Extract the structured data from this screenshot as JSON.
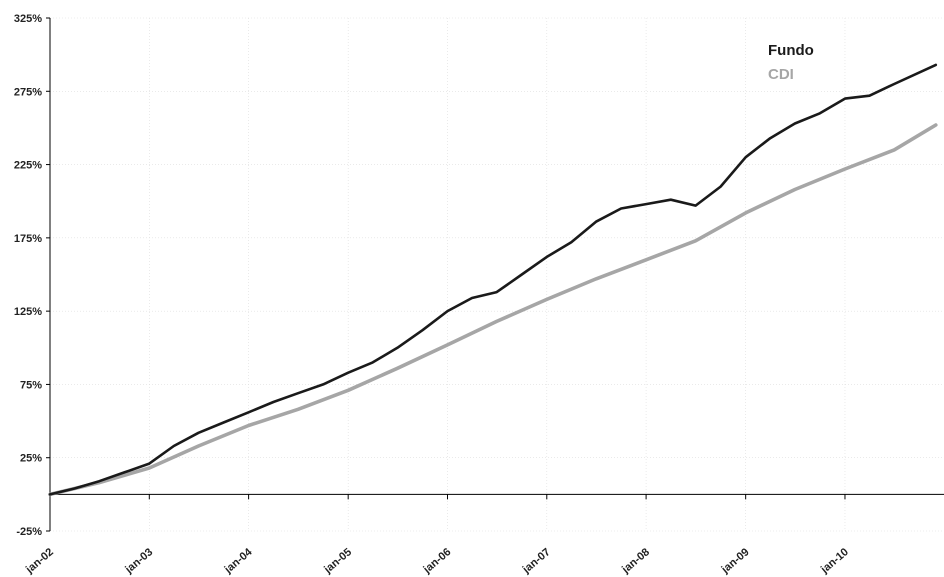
{
  "chart_data": {
    "type": "line",
    "x": [
      "jan-02",
      "jan-03",
      "jan-04",
      "jan-05",
      "jan-06",
      "jan-07",
      "jan-08",
      "jan-09",
      "jan-10",
      "dec-10"
    ],
    "x_tick_labels": [
      "jan-02",
      "jan-03",
      "jan-04",
      "jan-05",
      "jan-06",
      "jan-07",
      "jan-08",
      "jan-09",
      "jan-10"
    ],
    "ylim": [
      -25,
      325
    ],
    "y_tick_labels": [
      "325%",
      "275%",
      "225%",
      "175%",
      "125%",
      "75%",
      "25%",
      "-25%"
    ],
    "y_ticks": [
      325,
      275,
      225,
      175,
      125,
      75,
      25,
      -25
    ],
    "grid": true,
    "legend_position": "top-right",
    "series": [
      {
        "name": "Fundo",
        "color": "#1a1a1a",
        "points": [
          [
            "jan-02",
            0
          ],
          [
            "apr-02",
            4
          ],
          [
            "jul-02",
            9
          ],
          [
            "oct-02",
            15
          ],
          [
            "jan-03",
            21
          ],
          [
            "apr-03",
            33
          ],
          [
            "jul-03",
            42
          ],
          [
            "oct-03",
            49
          ],
          [
            "jan-04",
            56
          ],
          [
            "apr-04",
            63
          ],
          [
            "jul-04",
            69
          ],
          [
            "oct-04",
            75
          ],
          [
            "jan-05",
            83
          ],
          [
            "apr-05",
            90
          ],
          [
            "jul-05",
            100
          ],
          [
            "oct-05",
            112
          ],
          [
            "jan-06",
            125
          ],
          [
            "apr-06",
            134
          ],
          [
            "jul-06",
            138
          ],
          [
            "oct-06",
            150
          ],
          [
            "jan-07",
            162
          ],
          [
            "apr-07",
            172
          ],
          [
            "jul-07",
            186
          ],
          [
            "oct-07",
            195
          ],
          [
            "jan-08",
            198
          ],
          [
            "apr-08",
            201
          ],
          [
            "jul-08",
            197
          ],
          [
            "oct-08",
            210
          ],
          [
            "jan-09",
            230
          ],
          [
            "apr-09",
            243
          ],
          [
            "jul-09",
            253
          ],
          [
            "oct-09",
            260
          ],
          [
            "jan-10",
            270
          ],
          [
            "apr-10",
            272
          ],
          [
            "jul-10",
            280
          ],
          [
            "dec-10",
            293
          ]
        ]
      },
      {
        "name": "CDI",
        "color": "#a6a6a6",
        "points": [
          [
            "jan-02",
            0
          ],
          [
            "jul-02",
            8
          ],
          [
            "jan-03",
            18
          ],
          [
            "jul-03",
            33
          ],
          [
            "jan-04",
            47
          ],
          [
            "jul-04",
            58
          ],
          [
            "jan-05",
            71
          ],
          [
            "jul-05",
            86
          ],
          [
            "jan-06",
            102
          ],
          [
            "jul-06",
            118
          ],
          [
            "jan-07",
            133
          ],
          [
            "jul-07",
            147
          ],
          [
            "jan-08",
            160
          ],
          [
            "jul-08",
            173
          ],
          [
            "jan-09",
            192
          ],
          [
            "jul-09",
            208
          ],
          [
            "jan-10",
            222
          ],
          [
            "jul-10",
            235
          ],
          [
            "dec-10",
            252
          ]
        ]
      }
    ]
  }
}
